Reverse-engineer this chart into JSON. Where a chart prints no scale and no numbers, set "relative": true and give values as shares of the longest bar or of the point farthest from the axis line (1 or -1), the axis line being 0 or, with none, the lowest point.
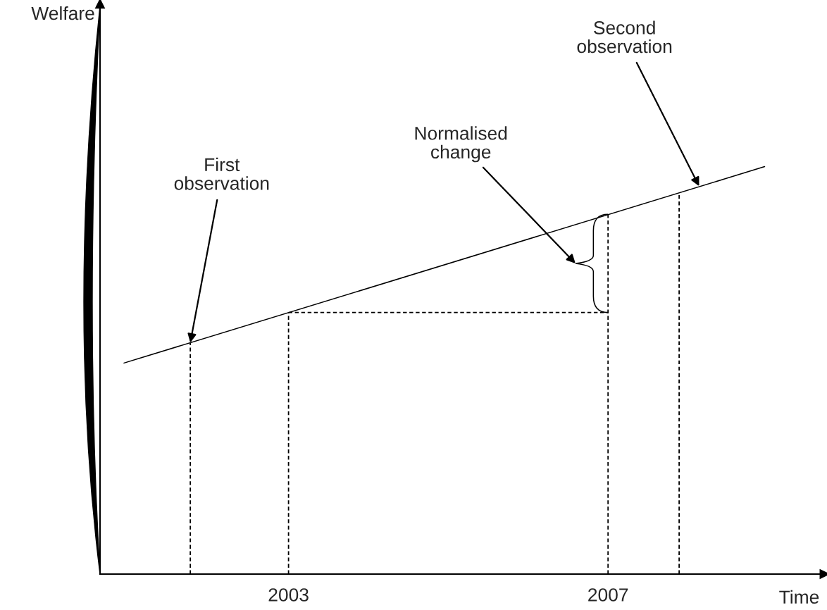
{
  "chart_data": {
    "type": "line",
    "relative": true,
    "xlabel": "Time",
    "xlim": [
      2000.64,
      2009.71
    ],
    "xticks": [
      2003,
      2007
    ],
    "grid": false,
    "marker": "none",
    "series": [
      {
        "color": "#000000",
        "line_style": "solid",
        "x": [
          2000.94,
          2008.96
        ],
        "values": [
          0.518,
          1
        ]
      },
      {
        "color": "#000000",
        "line_style": "dashed",
        "x": [
          2001.77,
          2001.77
        ],
        "values": [
          0,
          0.568
        ]
      },
      {
        "color": "#000000",
        "line_style": "dashed",
        "x": [
          2003,
          2003
        ],
        "values": [
          0,
          0.642
        ]
      },
      {
        "color": "#000000",
        "line_style": "dashed",
        "x": [
          2007,
          2007
        ],
        "values": [
          0,
          0.883
        ]
      },
      {
        "color": "#000000",
        "line_style": "dashed",
        "x": [
          2007.89,
          2007.89
        ],
        "values": [
          0,
          0.936
        ]
      },
      {
        "color": "#000000",
        "line_style": "dashed",
        "x": [
          2003,
          2007
        ],
        "values": [
          0.642,
          0.642
        ]
      }
    ],
    "annotations": [
      {
        "text": "First\nobservation",
        "x": 2001.77,
        "y": 0.568
      },
      "Normalised\nchange",
      {
        "text": "Second\nobservation",
        "x": 2008.14,
        "y": 0.952
      },
      "Welfare"
    ]
  }
}
